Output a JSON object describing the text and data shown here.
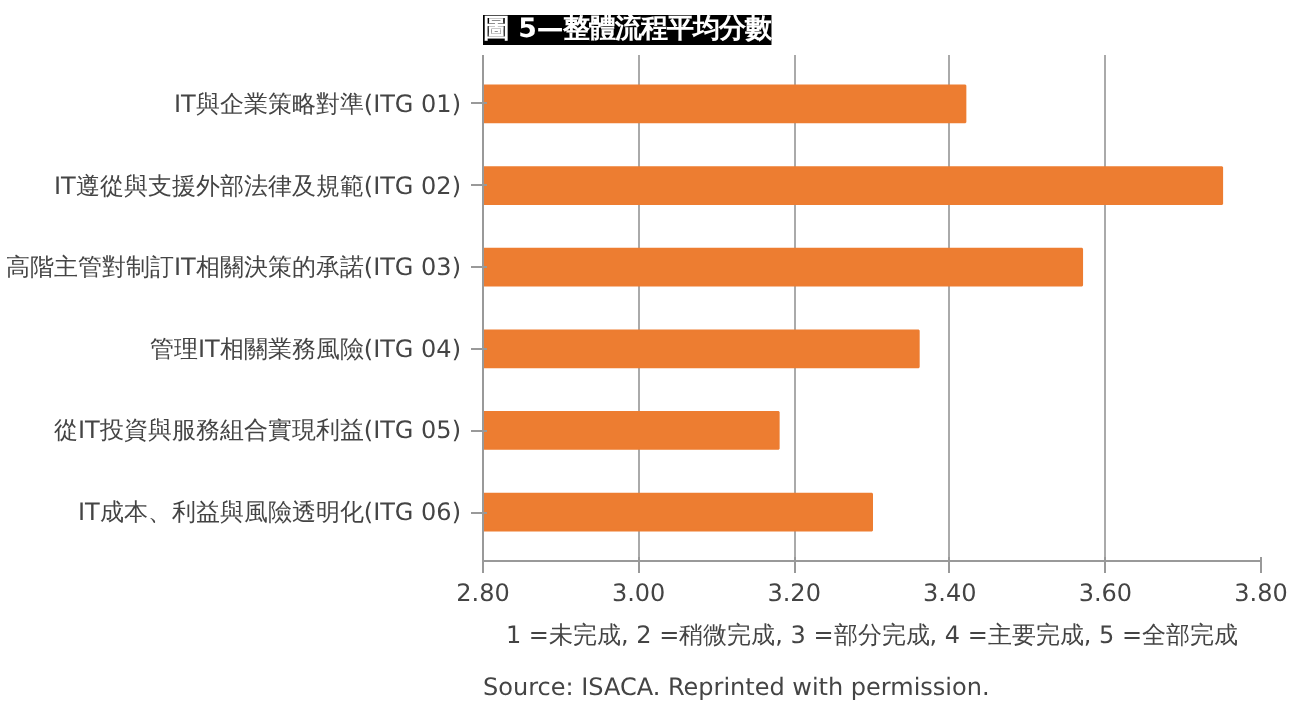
{
  "chart_data": {
    "type": "bar",
    "orientation": "horizontal",
    "title": "圖 5—整體流程平均分數",
    "categories": [
      "IT與企業策略對準(ITG 01)",
      "IT遵從與支援外部法律及規範(ITG 02)",
      "高階主管對制訂IT相關決策的承諾(ITG 03)",
      "管理IT相關業務風險(ITG 04)",
      "從IT投資與服務組合實現利益(ITG 05)",
      "IT成本、利益與風險透明化(ITG 06)"
    ],
    "values": [
      3.42,
      3.75,
      3.57,
      3.36,
      3.18,
      3.3
    ],
    "color": "#ed7d31",
    "xlim": [
      2.8,
      3.8
    ],
    "xticks": [
      {
        "value": 2.8,
        "label": "2.80"
      },
      {
        "value": 3.0,
        "label": "3.00"
      },
      {
        "value": 3.2,
        "label": "3.20"
      },
      {
        "value": 3.4,
        "label": "3.40"
      },
      {
        "value": 3.6,
        "label": "3.60"
      },
      {
        "value": 3.8,
        "label": "3.80"
      }
    ],
    "grid": "x",
    "annotations": [
      "1 =未完成, 2 =稍微完成, 3 =部分完成, 4 =主要完成, 5 =全部完成",
      "Source:  ISACA. Reprinted with permission."
    ]
  }
}
